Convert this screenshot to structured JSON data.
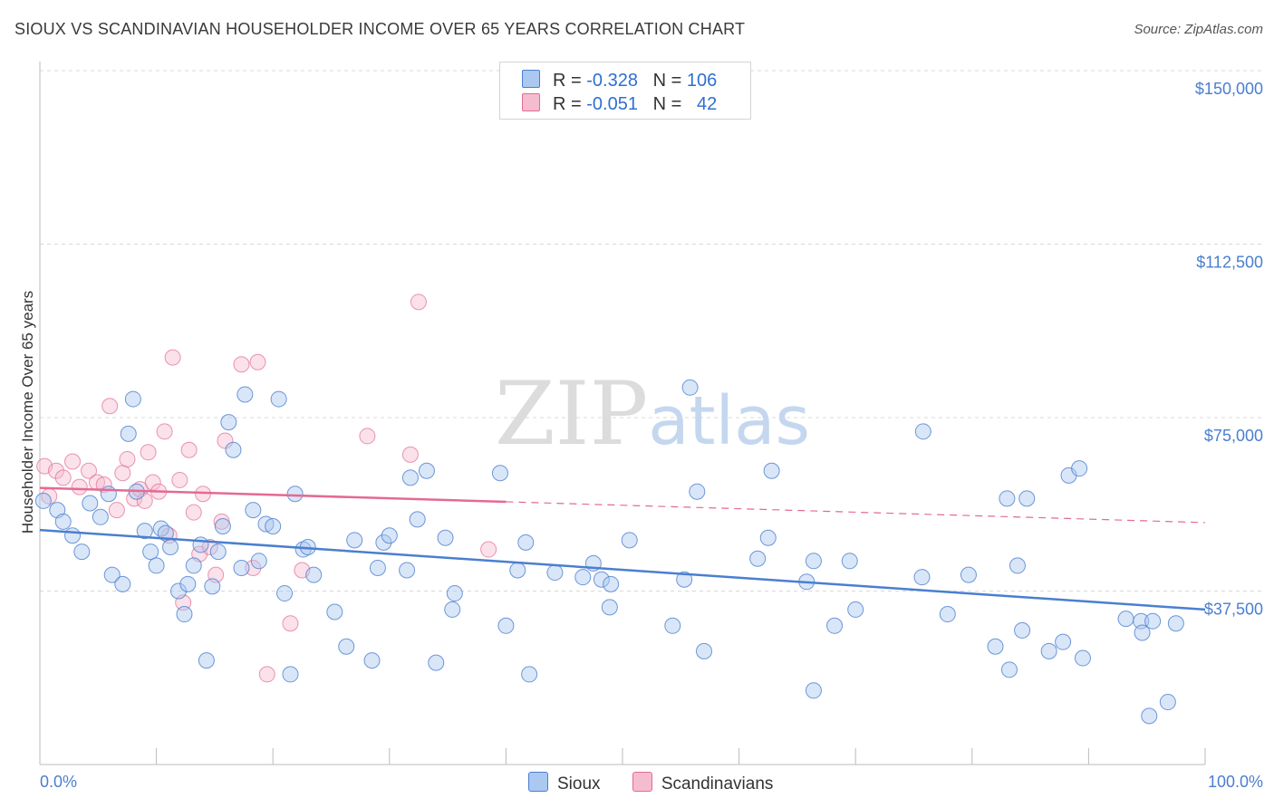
{
  "title": "SIOUX VS SCANDINAVIAN HOUSEHOLDER INCOME OVER 65 YEARS CORRELATION CHART",
  "source": "Source: ZipAtlas.com",
  "legend": {
    "rows": [
      {
        "r_label": "R =",
        "r_value": "-0.328",
        "n_label": "N =",
        "n_value": "106"
      },
      {
        "r_label": "R =",
        "r_value": "-0.051",
        "n_label": "N =",
        "n_value": "42"
      }
    ]
  },
  "bottom_legend": [
    "Sioux",
    "Scandinavians"
  ],
  "watermark": "ZIPatlas",
  "chart_data": {
    "type": "scatter",
    "title": "SIOUX VS SCANDINAVIAN HOUSEHOLDER INCOME OVER 65 YEARS CORRELATION CHART",
    "xlabel": "",
    "ylabel": "Householder Income Over 65 years",
    "xlim": [
      0,
      100
    ],
    "ylim": [
      0,
      155000
    ],
    "x_tick_labels": [
      "0.0%",
      "100.0%"
    ],
    "y_ticks": [
      37500,
      75000,
      112500,
      150000
    ],
    "y_tick_labels": [
      "$37,500",
      "$75,000",
      "$112,500",
      "$150,000"
    ],
    "grid": "horizontal dashed",
    "colors": {
      "sioux": "#4a7fd0",
      "sioux_fill": "#aac8f0",
      "scand": "#e46a93",
      "scand_fill": "#f5bcd0"
    },
    "series": [
      {
        "name": "Sioux",
        "trend": {
          "x": [
            0,
            100
          ],
          "y": [
            50700,
            33500
          ]
        },
        "points": [
          [
            0.3,
            57000
          ],
          [
            1.5,
            55000
          ],
          [
            2.0,
            52500
          ],
          [
            2.8,
            49500
          ],
          [
            3.6,
            46000
          ],
          [
            4.3,
            56500
          ],
          [
            5.2,
            53500
          ],
          [
            5.9,
            58500
          ],
          [
            6.2,
            41000
          ],
          [
            7.1,
            39000
          ],
          [
            7.6,
            71500
          ],
          [
            8.0,
            79000
          ],
          [
            8.3,
            59000
          ],
          [
            9.0,
            50500
          ],
          [
            9.5,
            46000
          ],
          [
            10.0,
            43000
          ],
          [
            10.4,
            51000
          ],
          [
            10.8,
            50000
          ],
          [
            11.2,
            47000
          ],
          [
            11.9,
            37500
          ],
          [
            12.4,
            32500
          ],
          [
            12.7,
            39000
          ],
          [
            13.2,
            43000
          ],
          [
            13.8,
            47500
          ],
          [
            14.3,
            22500
          ],
          [
            14.8,
            38500
          ],
          [
            15.3,
            46000
          ],
          [
            15.7,
            51500
          ],
          [
            16.2,
            74000
          ],
          [
            16.6,
            68000
          ],
          [
            17.3,
            42500
          ],
          [
            17.6,
            80000
          ],
          [
            18.3,
            55000
          ],
          [
            18.8,
            44000
          ],
          [
            19.4,
            52000
          ],
          [
            20.0,
            51500
          ],
          [
            20.5,
            79000
          ],
          [
            21.0,
            37000
          ],
          [
            21.5,
            19500
          ],
          [
            21.9,
            58500
          ],
          [
            22.6,
            46500
          ],
          [
            23.0,
            47000
          ],
          [
            23.5,
            41000
          ],
          [
            25.3,
            33000
          ],
          [
            26.3,
            25500
          ],
          [
            27.0,
            48500
          ],
          [
            28.5,
            22500
          ],
          [
            29.0,
            42500
          ],
          [
            29.5,
            48000
          ],
          [
            30.0,
            49500
          ],
          [
            31.5,
            42000
          ],
          [
            31.8,
            62000
          ],
          [
            32.4,
            53000
          ],
          [
            33.2,
            63500
          ],
          [
            34.0,
            22000
          ],
          [
            34.8,
            49000
          ],
          [
            35.4,
            33500
          ],
          [
            35.6,
            37000
          ],
          [
            39.5,
            63000
          ],
          [
            40.0,
            30000
          ],
          [
            41.0,
            42000
          ],
          [
            41.7,
            48000
          ],
          [
            42.0,
            19500
          ],
          [
            44.2,
            41500
          ],
          [
            46.6,
            40500
          ],
          [
            47.5,
            43500
          ],
          [
            48.2,
            40000
          ],
          [
            48.9,
            34000
          ],
          [
            49.0,
            39000
          ],
          [
            50.6,
            48500
          ],
          [
            54.3,
            30000
          ],
          [
            55.3,
            40000
          ],
          [
            55.8,
            81500
          ],
          [
            56.4,
            59000
          ],
          [
            57.0,
            24500
          ],
          [
            61.6,
            44500
          ],
          [
            62.5,
            49000
          ],
          [
            62.8,
            63500
          ],
          [
            65.8,
            39500
          ],
          [
            66.4,
            44000
          ],
          [
            66.4,
            16000
          ],
          [
            68.2,
            30000
          ],
          [
            69.5,
            44000
          ],
          [
            70.0,
            33500
          ],
          [
            75.7,
            40500
          ],
          [
            75.8,
            72000
          ],
          [
            77.9,
            32500
          ],
          [
            79.7,
            41000
          ],
          [
            82.0,
            25500
          ],
          [
            83.0,
            57500
          ],
          [
            83.2,
            20500
          ],
          [
            83.9,
            43000
          ],
          [
            84.3,
            29000
          ],
          [
            84.7,
            57500
          ],
          [
            86.6,
            24500
          ],
          [
            87.8,
            26500
          ],
          [
            88.3,
            62500
          ],
          [
            89.2,
            64000
          ],
          [
            89.5,
            23000
          ],
          [
            93.2,
            31500
          ],
          [
            94.5,
            31000
          ],
          [
            94.6,
            28500
          ],
          [
            95.2,
            10500
          ],
          [
            95.5,
            31000
          ],
          [
            96.8,
            13500
          ],
          [
            97.5,
            30500
          ]
        ]
      },
      {
        "name": "Scandinavians",
        "trend": {
          "x": [
            0,
            40
          ],
          "y": [
            59800,
            56800
          ]
        },
        "trend_dashed": {
          "x": [
            40,
            100
          ],
          "y": [
            56800,
            52300
          ]
        },
        "points": [
          [
            0.4,
            64500
          ],
          [
            0.8,
            58000
          ],
          [
            1.4,
            63500
          ],
          [
            2.0,
            62000
          ],
          [
            2.8,
            65500
          ],
          [
            3.4,
            60000
          ],
          [
            4.2,
            63500
          ],
          [
            4.9,
            61000
          ],
          [
            5.5,
            60500
          ],
          [
            6.0,
            77500
          ],
          [
            6.6,
            55000
          ],
          [
            7.1,
            63000
          ],
          [
            7.5,
            66000
          ],
          [
            8.1,
            57500
          ],
          [
            8.6,
            59500
          ],
          [
            9.0,
            57000
          ],
          [
            9.3,
            67500
          ],
          [
            9.7,
            61000
          ],
          [
            10.2,
            59000
          ],
          [
            10.7,
            72000
          ],
          [
            11.1,
            49500
          ],
          [
            11.4,
            88000
          ],
          [
            12.0,
            61500
          ],
          [
            12.3,
            35000
          ],
          [
            12.8,
            68000
          ],
          [
            13.2,
            54500
          ],
          [
            13.7,
            45500
          ],
          [
            14.0,
            58500
          ],
          [
            14.6,
            47000
          ],
          [
            15.1,
            41000
          ],
          [
            15.6,
            52500
          ],
          [
            15.9,
            70000
          ],
          [
            17.3,
            86500
          ],
          [
            18.3,
            42500
          ],
          [
            18.7,
            87000
          ],
          [
            19.5,
            19500
          ],
          [
            21.5,
            30500
          ],
          [
            22.5,
            42000
          ],
          [
            28.1,
            71000
          ],
          [
            31.8,
            67000
          ],
          [
            32.5,
            100000
          ],
          [
            38.5,
            46500
          ]
        ]
      }
    ]
  }
}
